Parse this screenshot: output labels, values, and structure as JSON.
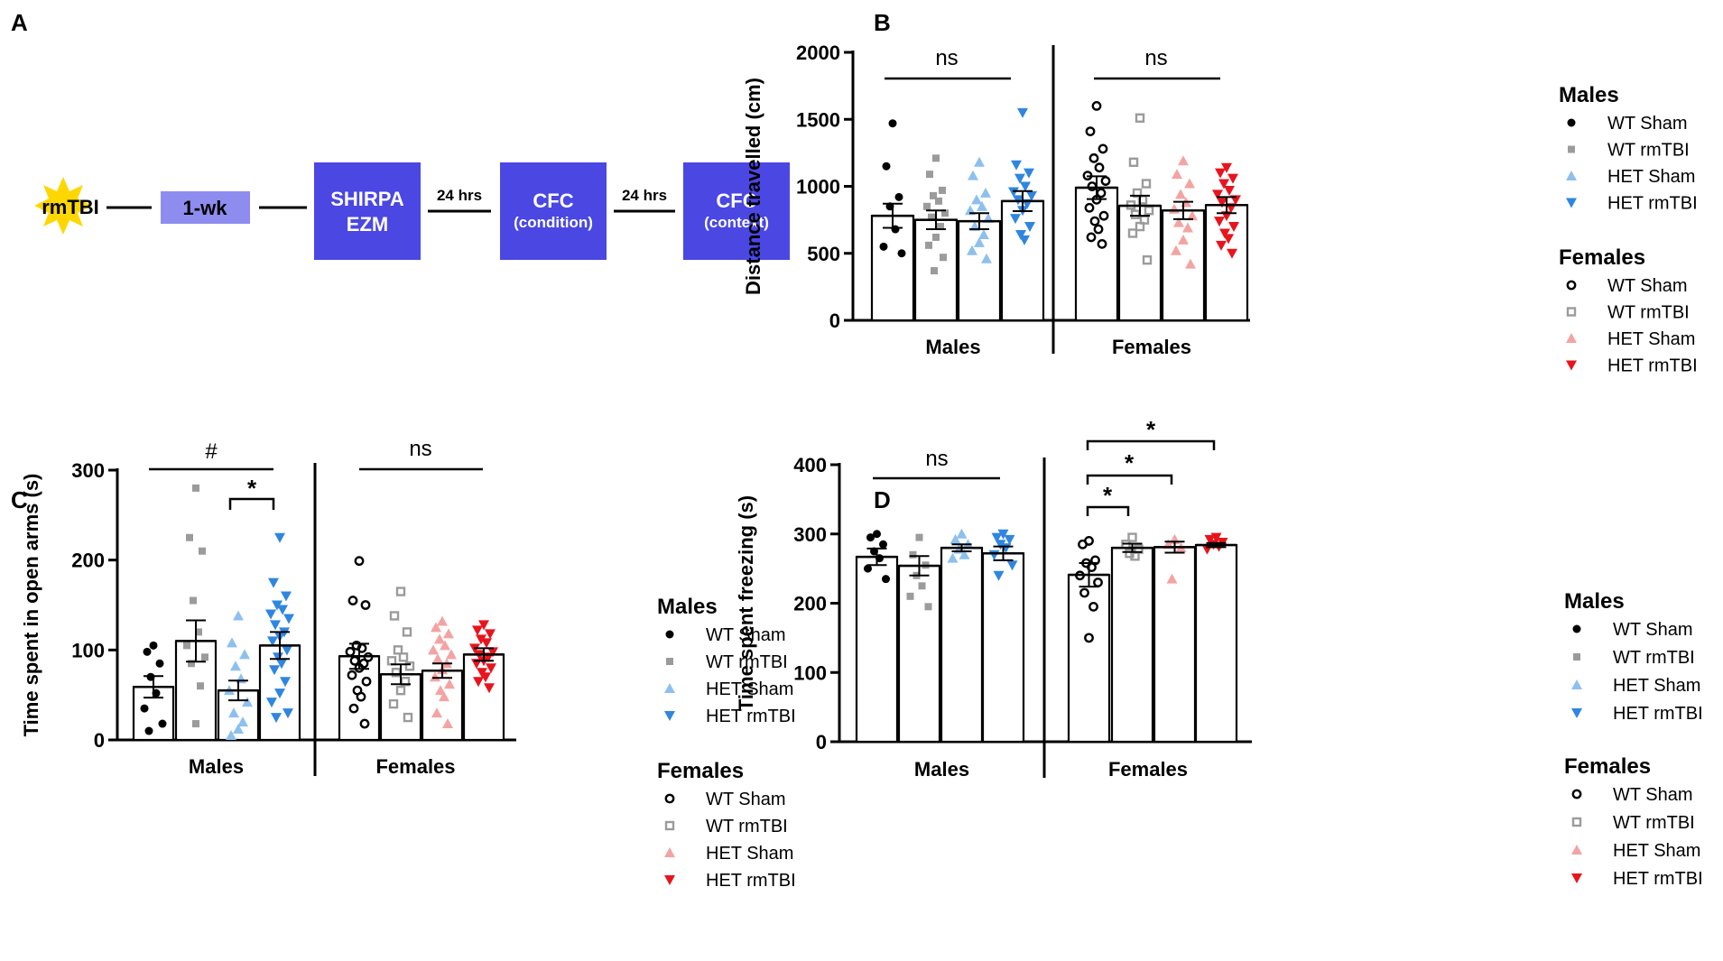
{
  "panel_labels": {
    "a": "A",
    "b": "B",
    "c": "C",
    "d": "D"
  },
  "timeline": {
    "start_label": "rmTBI",
    "week_label": "1-wk",
    "box1_line1": "SHIRPA",
    "box1_line2": "EZM",
    "gap1_label": "24 hrs",
    "box2_line1": "CFC",
    "box2_line2": "(condition)",
    "gap2_label": "24 hrs",
    "box3_line1": "CFC",
    "box3_line2": "(context)",
    "box_color": "#4a47e3",
    "week_color": "#8f8cef",
    "star_color": "#ffd700"
  },
  "legend": {
    "males_title": "Males",
    "females_title": "Females",
    "male_items": [
      "WT Sham",
      "WT rmTBI",
      "HET Sham",
      "HET rmTBI"
    ],
    "female_items": [
      "WT Sham",
      "WT rmTBI",
      "HET Sham",
      "HET rmTBI"
    ]
  },
  "colors": {
    "wt_sham": "#000000",
    "wt_rmtbi": "#9b9b9b",
    "het_sham_male": "#8ec0ef",
    "het_rmtbi_male": "#2f86e0",
    "het_sham_female": "#f4a3a3",
    "het_rmtbi_female": "#e8141d"
  },
  "chart_data": [
    {
      "panel": "B",
      "type": "bar",
      "title": "",
      "ylabel": "Distance travelled (cm)",
      "xlabel": "",
      "ylim": [
        0,
        2000
      ],
      "yticks": [
        0,
        500,
        1000,
        1500,
        2000
      ],
      "group_labels": [
        "Males",
        "Females"
      ],
      "categories": [
        "WT Sham",
        "WT rmTBI",
        "HET Sham",
        "HET rmTBI"
      ],
      "series": [
        {
          "name": "Males",
          "values": [
            780,
            750,
            740,
            890
          ],
          "sem": [
            90,
            70,
            60,
            75
          ],
          "points": [
            [
              1470,
              1150,
              920,
              850,
              680,
              550,
              500
            ],
            [
              1210,
              1090,
              970,
              930,
              890,
              850,
              800,
              770,
              700,
              620,
              560,
              470,
              370
            ],
            [
              1180,
              1080,
              950,
              900,
              850,
              820,
              760,
              700,
              640,
              580,
              520,
              460
            ],
            [
              1550,
              1160,
              1100,
              1060,
              1000,
              960,
              930,
              900,
              870,
              820,
              760,
              700,
              640,
              600
            ]
          ]
        },
        {
          "name": "Females",
          "values": [
            990,
            855,
            820,
            860
          ],
          "sem": [
            85,
            75,
            65,
            60
          ],
          "points": [
            [
              1600,
              1410,
              1280,
              1210,
              1140,
              1080,
              1040,
              1000,
              950,
              900,
              840,
              780,
              740,
              680,
              620,
              570
            ],
            [
              1510,
              1180,
              1020,
              950,
              900,
              860,
              820,
              790,
              750,
              700,
              650,
              450
            ],
            [
              1190,
              1090,
              1020,
              940,
              880,
              830,
              780,
              730,
              690,
              600,
              520,
              420
            ],
            [
              1140,
              1100,
              1060,
              1020,
              970,
              940,
              900,
              880,
              840,
              780,
              740,
              700,
              650,
              610,
              560,
              500
            ]
          ]
        }
      ],
      "annotations": [
        {
          "group": 0,
          "text": "ns"
        },
        {
          "group": 1,
          "text": "ns"
        }
      ]
    },
    {
      "panel": "C",
      "type": "bar",
      "title": "",
      "ylabel": "Time spent in open arms (s)",
      "xlabel": "",
      "ylim": [
        0,
        300
      ],
      "yticks": [
        0,
        100,
        200,
        300
      ],
      "group_labels": [
        "Males",
        "Females"
      ],
      "categories": [
        "WT Sham",
        "WT rmTBI",
        "HET Sham",
        "HET rmTBI"
      ],
      "series": [
        {
          "name": "Males",
          "values": [
            59,
            110,
            55,
            105
          ],
          "sem": [
            12,
            23,
            11,
            15
          ],
          "points": [
            [
              105,
              98,
              85,
              70,
              52,
              35,
              18,
              10
            ],
            [
              280,
              225,
              210,
              155,
              120,
              105,
              92,
              85,
              60,
              18
            ],
            [
              138,
              108,
              95,
              82,
              68,
              55,
              42,
              30,
              20,
              12,
              5
            ],
            [
              225,
              175,
              160,
              150,
              145,
              140,
              135,
              128,
              120,
              115,
              110,
              100,
              92,
              85,
              78,
              65,
              52,
              42,
              30,
              25
            ]
          ]
        },
        {
          "name": "Females",
          "values": [
            93,
            73,
            77,
            95
          ],
          "sem": [
            14,
            11,
            8,
            7
          ],
          "points": [
            [
              199,
              155,
              150,
              105,
              102,
              98,
              92,
              88,
              85,
              80,
              72,
              65,
              55,
              48,
              35,
              18
            ],
            [
              165,
              138,
              120,
              100,
              92,
              88,
              82,
              75,
              65,
              55,
              40,
              25
            ],
            [
              132,
              125,
              118,
              112,
              105,
              100,
              95,
              90,
              85,
              78,
              70,
              62,
              55,
              48,
              30,
              18
            ],
            [
              128,
              122,
              118,
              112,
              108,
              102,
              98,
              95,
              92,
              88,
              85,
              80,
              75,
              70,
              65,
              58
            ]
          ]
        }
      ],
      "annotations": [
        {
          "group": 0,
          "text": "#"
        },
        {
          "group": 0,
          "text": "*"
        },
        {
          "group": 1,
          "text": "ns"
        }
      ]
    },
    {
      "panel": "D",
      "type": "bar",
      "title": "",
      "ylabel": "Time spent freezing (s)",
      "xlabel": "",
      "ylim": [
        0,
        400
      ],
      "yticks": [
        0,
        100,
        200,
        300,
        400
      ],
      "group_labels": [
        "Males",
        "Females"
      ],
      "categories": [
        "WT Sham",
        "WT rmTBI",
        "HET Sham",
        "HET rmTBI"
      ],
      "series": [
        {
          "name": "Males",
          "values": [
            267,
            254,
            280,
            272
          ],
          "sem": [
            12,
            14,
            5,
            10
          ],
          "points": [
            [
              300,
              295,
              285,
              275,
              265,
              250,
              235
            ],
            [
              295,
              270,
              255,
              240,
              225,
              210,
              195
            ],
            [
              300,
              292,
              285,
              278,
              270,
              265
            ],
            [
              300,
              295,
              292,
              285,
              280,
              270,
              255,
              240
            ]
          ]
        },
        {
          "name": "Females",
          "values": [
            241,
            280,
            281,
            284
          ],
          "sem": [
            17,
            6,
            8,
            3
          ],
          "points": [
            [
              290,
              285,
              262,
              258,
              252,
              240,
              230,
              215,
              195,
              150
            ],
            [
              295,
              285,
              278,
              272,
              268
            ],
            [
              292,
              285,
              280,
              235
            ],
            [
              295,
              292,
              288,
              285,
              282,
              278
            ]
          ]
        }
      ],
      "annotations": [
        {
          "group": 0,
          "text": "ns"
        },
        {
          "group": 1,
          "text": "*"
        },
        {
          "group": 1,
          "text": "*"
        },
        {
          "group": 1,
          "text": "*"
        }
      ]
    }
  ]
}
